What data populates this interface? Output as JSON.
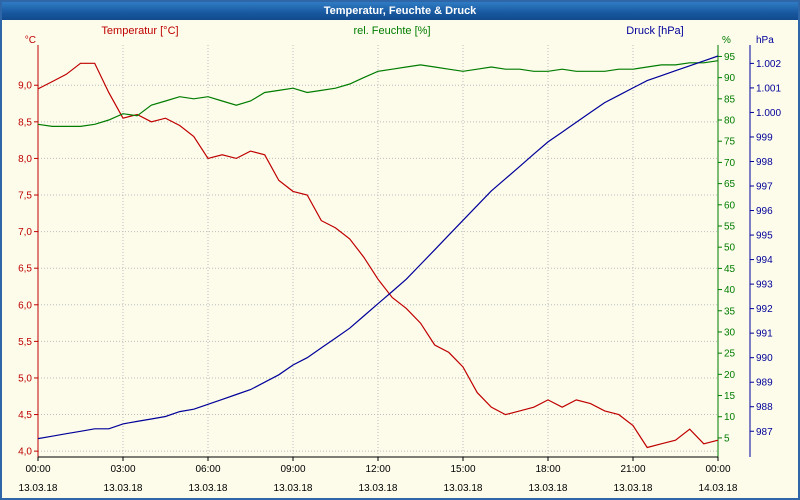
{
  "window": {
    "title": "Temperatur, Feuchte & Druck"
  },
  "header": {
    "temperature_label": "Temperatur [°C]",
    "humidity_label": "rel. Feuchte [%]",
    "pressure_label": "Druck [hPa]"
  },
  "axis_units": {
    "temperature": "°C",
    "humidity": "%",
    "pressure": "hPa"
  },
  "colors": {
    "temperature": "#bf0000",
    "humidity": "#007c00",
    "pressure": "#000099",
    "grid": "#bdbdbd",
    "axis_text": "#000000",
    "background": "#fdfceb",
    "titlebar": "#18589f",
    "border": "#2f66a8"
  },
  "chart_data": {
    "type": "line",
    "title": "Temperatur, Feuchte & Druck",
    "x_unit": "hours",
    "grid": "dotted",
    "x_hours": [
      0,
      0.5,
      1,
      1.5,
      2,
      2.5,
      3,
      3.5,
      4,
      4.5,
      5,
      5.5,
      6,
      6.5,
      7,
      7.5,
      8,
      8.5,
      9,
      9.5,
      10,
      10.5,
      11,
      11.5,
      12,
      12.5,
      13,
      13.5,
      14,
      14.5,
      15,
      15.5,
      16,
      16.5,
      17,
      17.5,
      18,
      18.5,
      19,
      19.5,
      20,
      20.5,
      21,
      21.5,
      22,
      22.5,
      23,
      23.5,
      24
    ],
    "x_ticks": {
      "hours": [
        0,
        3,
        6,
        9,
        12,
        15,
        18,
        21,
        24
      ],
      "time_labels": [
        "00:00",
        "03:00",
        "06:00",
        "09:00",
        "12:00",
        "15:00",
        "18:00",
        "21:00",
        "00:00"
      ],
      "date_labels": [
        "13.03.18",
        "13.03.18",
        "13.03.18",
        "13.03.18",
        "13.03.18",
        "13.03.18",
        "13.03.18",
        "13.03.18",
        "14.03.18"
      ]
    },
    "y_axes": {
      "temperature": {
        "unit": "°C",
        "side": "left",
        "ticks": [
          4,
          4.5,
          5,
          5.5,
          6,
          6.5,
          7,
          7.5,
          8,
          8.5,
          9
        ],
        "tick_labels": [
          "4,0",
          "4,5",
          "5,0",
          "5,5",
          "6,0",
          "6,5",
          "7,0",
          "7,5",
          "8,0",
          "8,5",
          "9,0"
        ],
        "range_top": 9.55,
        "range_bottom": 3.92
      },
      "humidity": {
        "unit": "%",
        "side": "right-inner",
        "ticks": [
          5,
          10,
          15,
          20,
          25,
          30,
          35,
          40,
          45,
          50,
          55,
          60,
          65,
          70,
          75,
          80,
          85,
          90,
          95
        ],
        "tick_labels": [
          "5",
          "10",
          "15",
          "20",
          "25",
          "30",
          "35",
          "40",
          "45",
          "50",
          "55",
          "60",
          "65",
          "70",
          "75",
          "80",
          "85",
          "90",
          "95"
        ],
        "range_top": 97.7,
        "range_bottom": 0.5
      },
      "pressure": {
        "unit": "hPa",
        "side": "right-outer",
        "ticks": [
          987,
          988,
          989,
          990,
          991,
          992,
          993,
          994,
          995,
          996,
          997,
          998,
          999,
          1000,
          1001,
          1002
        ],
        "tick_labels": [
          "987",
          "988",
          "989",
          "990",
          "991",
          "992",
          "993",
          "994",
          "995",
          "996",
          "997",
          "998",
          "999",
          "1.000",
          "1.001",
          "1.002"
        ],
        "range_top": 1002.75,
        "range_bottom": 985.95
      }
    },
    "series": [
      {
        "name": "Temperatur",
        "axis": "temperature",
        "values": [
          8.95,
          9.05,
          9.15,
          9.3,
          9.3,
          8.9,
          8.55,
          8.6,
          8.5,
          8.55,
          8.45,
          8.3,
          8.0,
          8.05,
          8.0,
          8.1,
          8.05,
          7.7,
          7.55,
          7.5,
          7.15,
          7.05,
          6.9,
          6.65,
          6.35,
          6.1,
          5.95,
          5.75,
          5.45,
          5.35,
          5.15,
          4.8,
          4.6,
          4.5,
          4.55,
          4.6,
          4.7,
          4.6,
          4.7,
          4.65,
          4.55,
          4.5,
          4.35,
          4.05,
          4.1,
          4.15,
          4.3,
          4.1,
          4.15
        ]
      },
      {
        "name": "rel. Feuchte",
        "axis": "humidity",
        "values": [
          79,
          78.5,
          78.5,
          78.5,
          79,
          80,
          81.5,
          81,
          83.5,
          84.5,
          85.5,
          85,
          85.5,
          84.5,
          83.5,
          84.5,
          86.5,
          87,
          87.5,
          86.5,
          87,
          87.5,
          88.5,
          90,
          91.5,
          92,
          92.5,
          93,
          92.5,
          92,
          91.5,
          92,
          92.5,
          92,
          92,
          91.5,
          91.5,
          92,
          91.5,
          91.5,
          91.5,
          92,
          92,
          92.5,
          93,
          93,
          93.5,
          93.5,
          94
        ]
      },
      {
        "name": "Druck",
        "axis": "pressure",
        "values": [
          986.7,
          986.8,
          986.9,
          987.0,
          987.1,
          987.1,
          987.3,
          987.4,
          987.5,
          987.6,
          987.8,
          987.9,
          988.1,
          988.3,
          988.5,
          988.7,
          989.0,
          989.3,
          989.7,
          990.0,
          990.4,
          990.8,
          991.2,
          991.7,
          992.2,
          992.7,
          993.2,
          993.8,
          994.4,
          995.0,
          995.6,
          996.2,
          996.8,
          997.3,
          997.8,
          998.3,
          998.8,
          999.2,
          999.6,
          1000.0,
          1000.4,
          1000.7,
          1001.0,
          1001.3,
          1001.5,
          1001.7,
          1001.9,
          1002.1,
          1002.3
        ]
      }
    ]
  }
}
